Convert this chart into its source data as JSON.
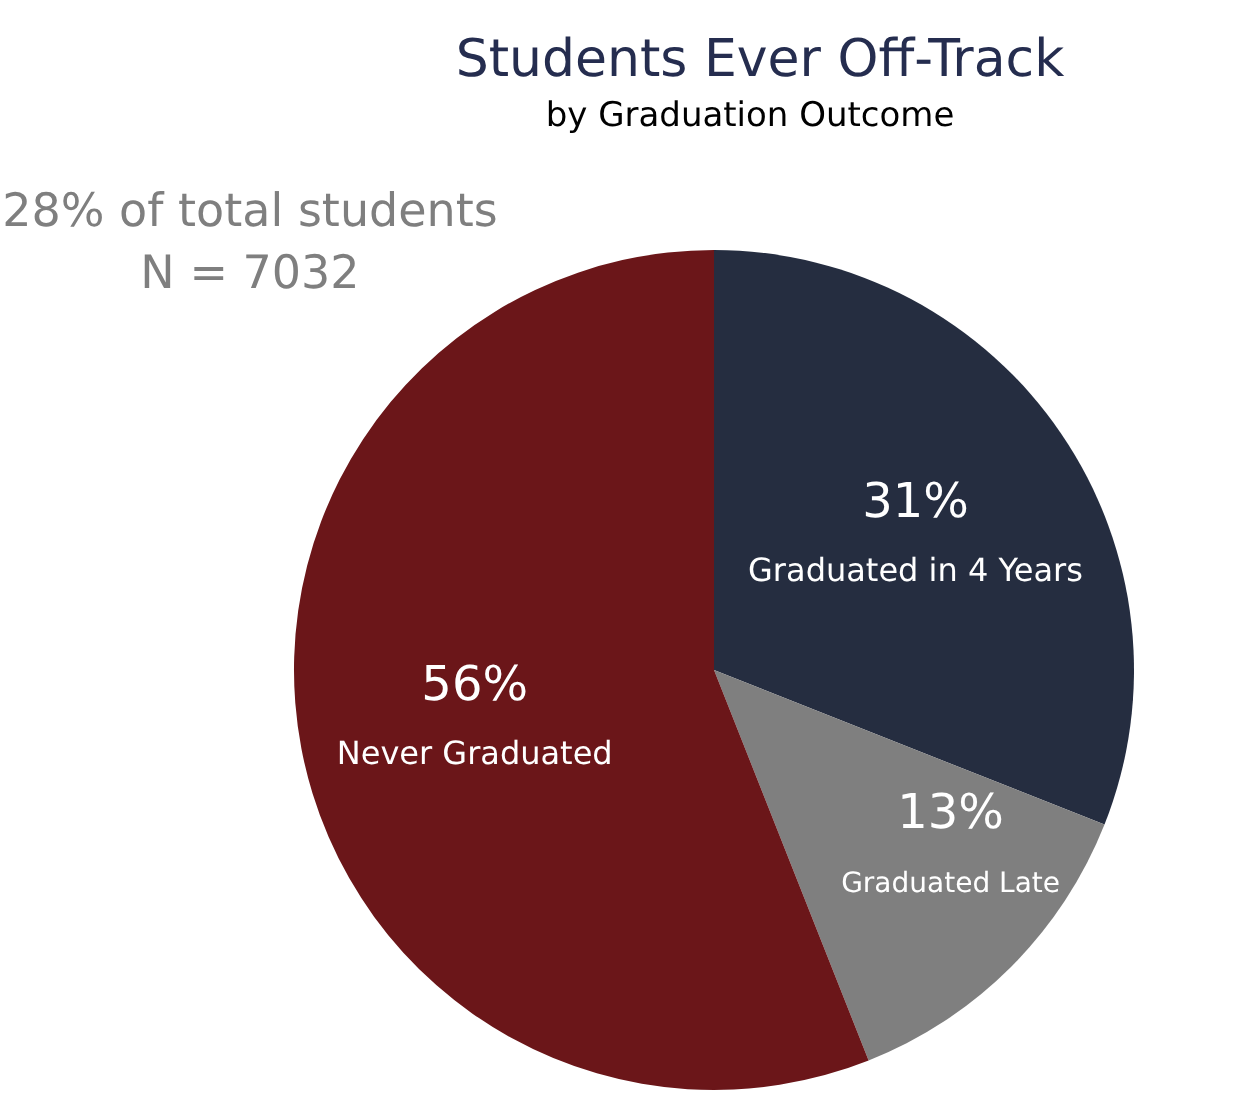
{
  "chart_data": {
    "type": "pie",
    "title": "Students Ever Off-Track",
    "subtitle": "by Graduation Outcome",
    "categories": [
      "Graduated in 4 Years",
      "Graduated Late",
      "Never Graduated"
    ],
    "values": [
      31,
      13,
      56
    ],
    "colors": [
      "#252d40",
      "#7f7f7f",
      "#6b1619"
    ],
    "value_labels": [
      "31%",
      "13%",
      "56%"
    ],
    "legend": false,
    "annotations": [
      "28% of total students",
      "N = 7032"
    ]
  }
}
